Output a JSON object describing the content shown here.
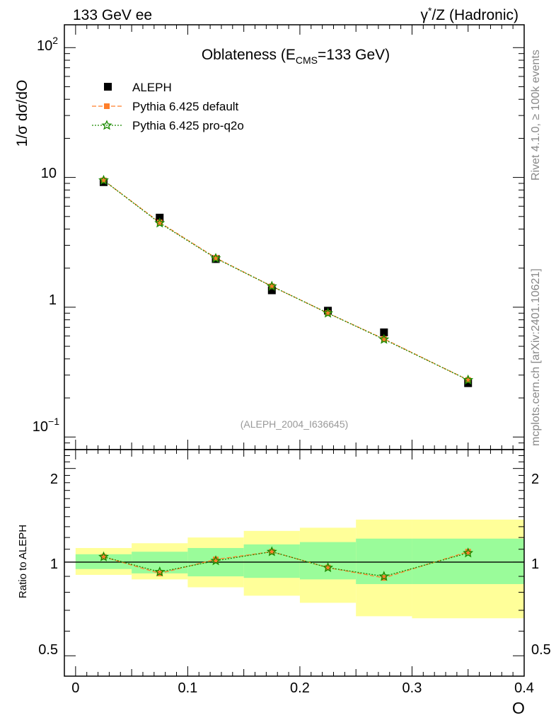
{
  "header": {
    "left": "133 GeV ee",
    "right_prefix": "γ",
    "right_sup": "*",
    "right_suffix": "/Z (Hadronic)"
  },
  "side_text": {
    "rivet": "Rivet 4.1.0, ≥ 100k events",
    "mcplots": "mcplots.cern.ch [arXiv:2401.10621]"
  },
  "colors": {
    "aleph": "#000000",
    "pythia_default": "#ff7f2a",
    "pythia_proq2o": "#1a8a00",
    "band_inner": "#9afc9a",
    "band_outer": "#ffff99"
  },
  "chart_data": [
    {
      "type": "scatter",
      "panel": "main",
      "title_main": "Oblateness (E",
      "title_sub": "CMS",
      "title_tail": "=133 GeV)",
      "ylabel": "1/σ  dσ/dO",
      "yscale": "log",
      "ylim": [
        0.08,
        150
      ],
      "xlim": [
        -0.01,
        0.4
      ],
      "ytick_labels": {
        "e2_base": "10",
        "e2_exp": "2",
        "ten": "10",
        "one": "1",
        "em1_base": "10",
        "em1_exp": "−1"
      },
      "analysis_label": "(ALEPH_2004_I636645)",
      "legend_position": "top-left",
      "series": [
        {
          "name": "ALEPH",
          "marker": "square",
          "x": [
            0.025,
            0.075,
            0.125,
            0.175,
            0.225,
            0.275,
            0.35
          ],
          "y": [
            9.2,
            4.9,
            2.35,
            1.35,
            0.94,
            0.64,
            0.26
          ]
        },
        {
          "name": "Pythia 6.425 default",
          "marker": "square-dashed-line",
          "x": [
            0.025,
            0.075,
            0.125,
            0.175,
            0.225,
            0.275,
            0.35
          ],
          "y": [
            9.5,
            4.5,
            2.4,
            1.45,
            0.9,
            0.57,
            0.275
          ]
        },
        {
          "name": "Pythia 6.425 pro-q2o",
          "marker": "star-dotted-line",
          "x": [
            0.025,
            0.075,
            0.125,
            0.175,
            0.225,
            0.275,
            0.35
          ],
          "y": [
            9.5,
            4.45,
            2.38,
            1.45,
            0.9,
            0.565,
            0.275
          ]
        }
      ]
    },
    {
      "type": "line",
      "panel": "ratio",
      "ylabel": "Ratio to ALEPH",
      "xlabel": "O",
      "yscale": "log",
      "ylim": [
        0.43,
        2.3
      ],
      "xlim": [
        -0.01,
        0.4
      ],
      "xtick_labels": [
        "0",
        "0.1",
        "0.2",
        "0.3",
        "0.4"
      ],
      "xtick_values": [
        0,
        0.1,
        0.2,
        0.3,
        0.4
      ],
      "ytick_labels": [
        "0.5",
        "1",
        "2"
      ],
      "ytick_values": [
        0.5,
        1,
        2
      ],
      "bins": [
        [
          0,
          0.05
        ],
        [
          0.05,
          0.1
        ],
        [
          0.1,
          0.15
        ],
        [
          0.15,
          0.2
        ],
        [
          0.2,
          0.25
        ],
        [
          0.25,
          0.3
        ],
        [
          0.3,
          0.4
        ]
      ],
      "band_inner": [
        [
          0.95,
          1.06
        ],
        [
          0.92,
          1.08
        ],
        [
          0.9,
          1.11
        ],
        [
          0.89,
          1.14
        ],
        [
          0.88,
          1.16
        ],
        [
          0.85,
          1.19
        ],
        [
          0.85,
          1.19
        ]
      ],
      "band_outer": [
        [
          0.91,
          1.11
        ],
        [
          0.88,
          1.15
        ],
        [
          0.83,
          1.2
        ],
        [
          0.78,
          1.26
        ],
        [
          0.74,
          1.29
        ],
        [
          0.67,
          1.37
        ],
        [
          0.66,
          1.37
        ]
      ],
      "series": [
        {
          "name": "Pythia 6.425 default",
          "x": [
            0.025,
            0.075,
            0.125,
            0.175,
            0.225,
            0.275,
            0.35
          ],
          "y": [
            1.04,
            0.92,
            1.02,
            1.08,
            0.96,
            0.89,
            1.08
          ]
        },
        {
          "name": "Pythia 6.425 pro-q2o",
          "x": [
            0.025,
            0.075,
            0.125,
            0.175,
            0.225,
            0.275,
            0.35
          ],
          "y": [
            1.04,
            0.93,
            1.01,
            1.08,
            0.96,
            0.9,
            1.07
          ]
        }
      ]
    }
  ]
}
